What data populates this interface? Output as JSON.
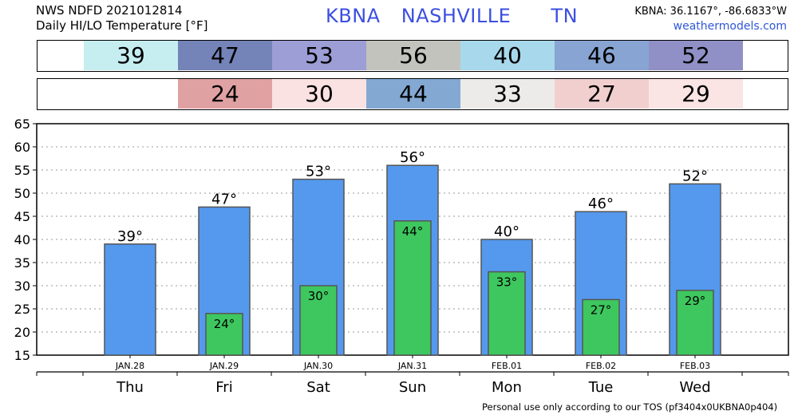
{
  "header": {
    "line1": "NWS NDFD 2021012814",
    "line2": "Daily HI/LO Temperature [°F]",
    "station": "KBNA",
    "city": "NASHVILLE",
    "state": "TN",
    "coords": "KBNA: 36.1167°, -86.6833°W",
    "site": "weathermodels.com"
  },
  "hi_row": [
    {
      "text": "39",
      "color": "#c6eef0"
    },
    {
      "text": "47",
      "color": "#7484b8"
    },
    {
      "text": "53",
      "color": "#9d9ed6"
    },
    {
      "text": "56",
      "color": "#c2c3bd"
    },
    {
      "text": "40",
      "color": "#a8d8ec"
    },
    {
      "text": "46",
      "color": "#87a4d2"
    },
    {
      "text": "52",
      "color": "#9090c6"
    }
  ],
  "lo_row": [
    {
      "text": "",
      "color": "#ffffff"
    },
    {
      "text": "24",
      "color": "#e0a1a3"
    },
    {
      "text": "30",
      "color": "#fae2e2"
    },
    {
      "text": "44",
      "color": "#83a9d3"
    },
    {
      "text": "33",
      "color": "#ecebea"
    },
    {
      "text": "27",
      "color": "#f2cfcf"
    },
    {
      "text": "29",
      "color": "#fbe4e4"
    }
  ],
  "chart_data": {
    "type": "bar",
    "categories": [
      "Thu",
      "Fri",
      "Sat",
      "Sun",
      "Mon",
      "Tue",
      "Wed"
    ],
    "dates": [
      "JAN.28",
      "JAN.29",
      "JAN.30",
      "JAN.31",
      "FEB.01",
      "FEB.02",
      "FEB.03"
    ],
    "series": [
      {
        "values": [
          39,
          47,
          53,
          56,
          40,
          46,
          52
        ],
        "labels": [
          "39°",
          "47°",
          "53°",
          "56°",
          "40°",
          "46°",
          "52°"
        ],
        "color": "#5599ee"
      },
      {
        "values": [
          null,
          24,
          30,
          44,
          33,
          27,
          29
        ],
        "labels": [
          "",
          "24°",
          "30°",
          "44°",
          "33°",
          "27°",
          "29°"
        ],
        "color": "#3ec75f"
      }
    ],
    "ylim": [
      15,
      65
    ],
    "yticks": [
      "15",
      "20",
      "25",
      "30",
      "35",
      "40",
      "45",
      "50",
      "55",
      "60",
      "65"
    ],
    "grid": true
  },
  "footer": "Personal use only according to our TOS (pf3404x0UKBNA0p404)"
}
